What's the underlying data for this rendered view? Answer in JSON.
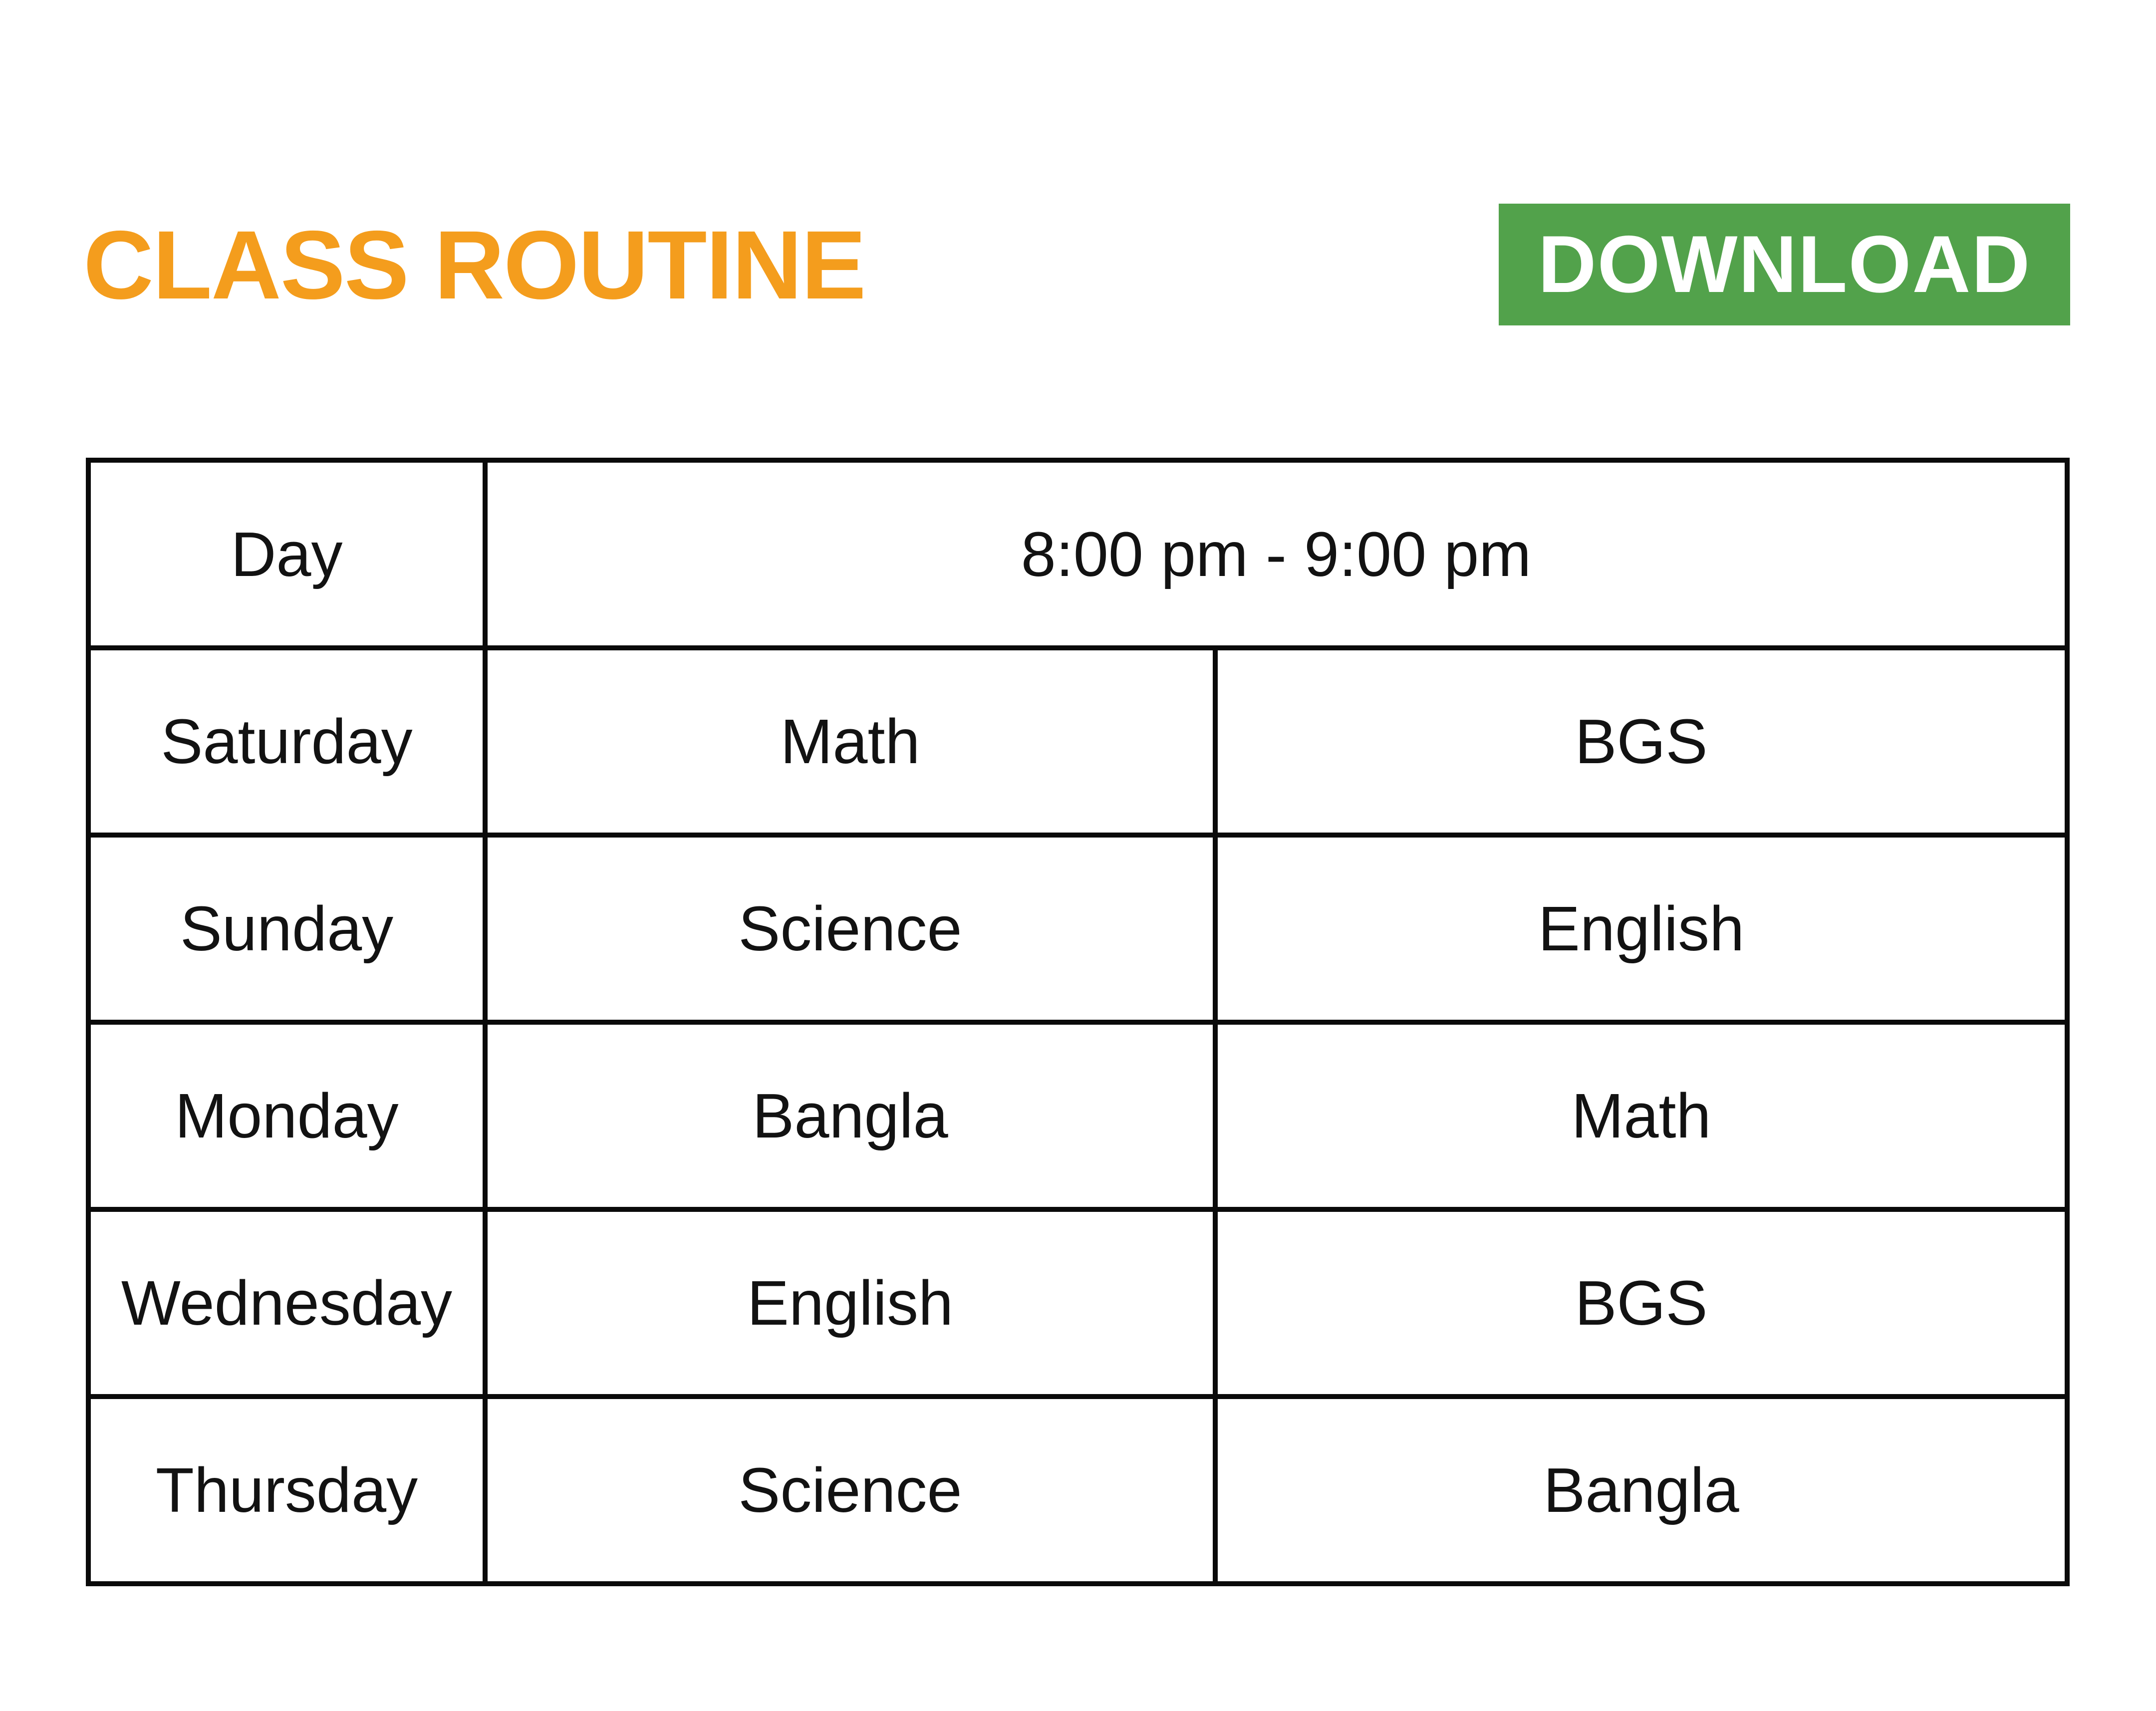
{
  "title": "CLASS ROUTINE",
  "download_button": {
    "label": "DOWNLOAD"
  },
  "table": {
    "header": {
      "day": "Day",
      "time_slot": "8:00 pm - 9:00 pm"
    },
    "rows": [
      {
        "day": "Saturday",
        "slot1": "Math",
        "slot2": "BGS"
      },
      {
        "day": "Sunday",
        "slot1": "Science",
        "slot2": "English"
      },
      {
        "day": "Monday",
        "slot1": "Bangla",
        "slot2": "Math"
      },
      {
        "day": "Wednesday",
        "slot1": "English",
        "slot2": "BGS"
      },
      {
        "day": "Thursday",
        "slot1": "Science",
        "slot2": "Bangla"
      }
    ]
  },
  "colors": {
    "title_orange": "#F49D1D",
    "button_green": "#52A24B",
    "header_green": "#2E6C27",
    "border_black": "#0A0A0A",
    "text_black": "#121212"
  }
}
